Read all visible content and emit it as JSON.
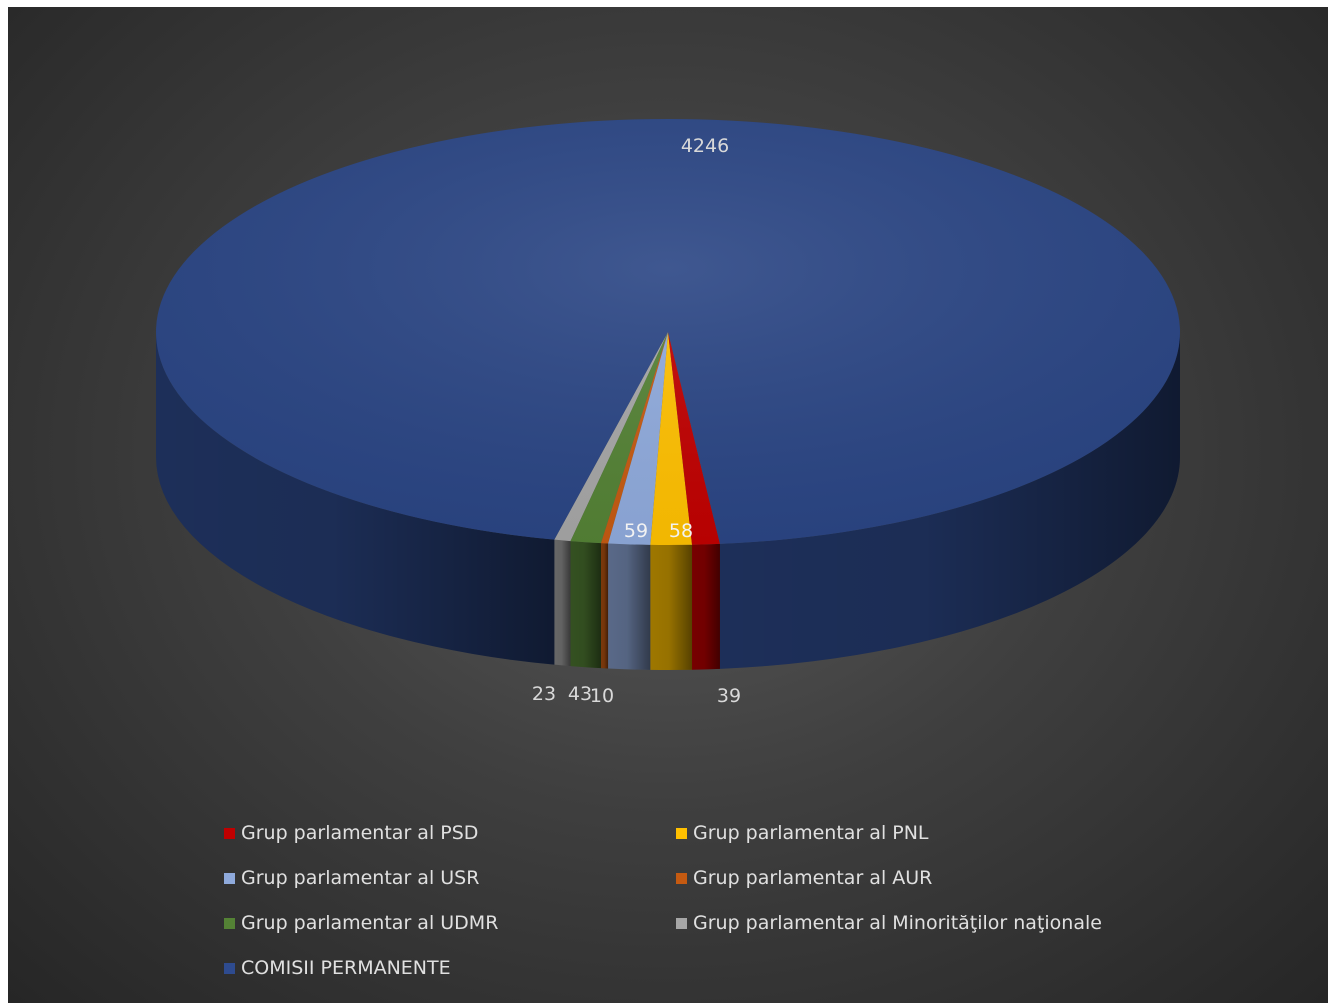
{
  "chart_data": {
    "type": "pie",
    "title": "",
    "categories": [
      "COMISII PERMANENTE",
      "Grup parlamentar al PSD",
      "Grup parlamentar al  PNL",
      "Grup parlamentar al USR",
      "Grup parlamentar al AUR",
      "Grup parlamentar al UDMR",
      "Grup parlamentar al Minorităţilor naţionale"
    ],
    "values": [
      4246,
      39,
      58,
      59,
      10,
      43,
      23
    ],
    "colors": [
      "#2e4b8f",
      "#c00000",
      "#ffc000",
      "#8faadc",
      "#c55a11",
      "#548235",
      "#a6a6a6"
    ],
    "data_label_color": "#d9d9d9",
    "legend_position": "bottom",
    "legend_order": [
      1,
      2,
      3,
      4,
      5,
      6,
      0
    ],
    "style": "3d"
  }
}
